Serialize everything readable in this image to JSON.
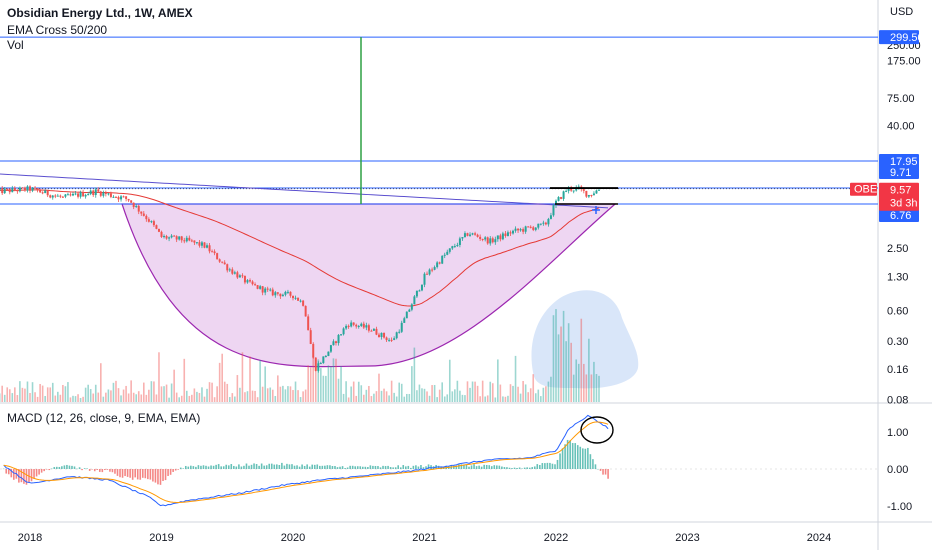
{
  "header": {
    "title": "Obsidian Energy Ltd., 1W, AMEX",
    "indicator": "EMA Cross 50/200",
    "volume": "Vol"
  },
  "macd_title": "MACD (12, 26, close, 9, EMA, EMA)",
  "colors": {
    "up": "#26a69a",
    "down": "#ef5350",
    "ema50": "#e53935",
    "ema200": "#5b4fcf",
    "hline": "#2962ff",
    "vline": "#2ea043",
    "bowl_fill": "#e8c8ee",
    "bowl_stroke": "#9c27b0",
    "vol_cloud": "#c9dcf7",
    "macd_line": "#2962ff",
    "signal_line": "#ff9800"
  },
  "chart_data": {
    "type": "candlestick",
    "symbol": "OBE",
    "currency_label": "USD",
    "scale": "log",
    "price_axis_ticks": [
      "250.00",
      "175.00",
      "75.00",
      "40.00",
      "2.50",
      "1.30",
      "0.60",
      "0.30",
      "0.16",
      "0.08"
    ],
    "x_ticks": [
      "2018",
      "2019",
      "2020",
      "2021",
      "2022",
      "2023",
      "2024"
    ],
    "horizontal_levels": [
      {
        "value": 299.5,
        "label": "299.50"
      },
      {
        "value": 17.95,
        "label": "17.95"
      },
      {
        "value": 9.71,
        "label": "9.71"
      },
      {
        "value": 6.76,
        "label": "6.76"
      }
    ],
    "last_price": {
      "symbol": "OBE",
      "value": 9.57,
      "label": "9.57",
      "countdown": "3d 3h"
    },
    "ohlc_path": [
      [
        "2017-10",
        9.0
      ],
      [
        "2018-01",
        9.5
      ],
      [
        "2018-04",
        7.8
      ],
      [
        "2018-07",
        9.0
      ],
      [
        "2018-10",
        7.5
      ],
      [
        "2018-12",
        4.5
      ],
      [
        "2019-01",
        3.2
      ],
      [
        "2019-03",
        3.0
      ],
      [
        "2019-05",
        2.6
      ],
      [
        "2019-07",
        1.6
      ],
      [
        "2019-09",
        1.1
      ],
      [
        "2019-11",
        0.9
      ],
      [
        "2020-01",
        0.85
      ],
      [
        "2020-02",
        0.7
      ],
      [
        "2020-03",
        0.16
      ],
      [
        "2020-04",
        0.22
      ],
      [
        "2020-06",
        0.45
      ],
      [
        "2020-08",
        0.4
      ],
      [
        "2020-10",
        0.3
      ],
      [
        "2020-11",
        0.45
      ],
      [
        "2021-01",
        1.3
      ],
      [
        "2021-03",
        2.2
      ],
      [
        "2021-05",
        3.5
      ],
      [
        "2021-07",
        2.9
      ],
      [
        "2021-09",
        3.6
      ],
      [
        "2021-11",
        4.0
      ],
      [
        "2021-12",
        4.2
      ],
      [
        "2022-01",
        7.0
      ],
      [
        "2022-02",
        9.5
      ],
      [
        "2022-03",
        9.6
      ],
      [
        "2022-04",
        8.3
      ],
      [
        "2022-05",
        9.57
      ]
    ],
    "macd_axis_ticks": [
      "1.00",
      "0.00",
      "-1.00"
    ]
  }
}
